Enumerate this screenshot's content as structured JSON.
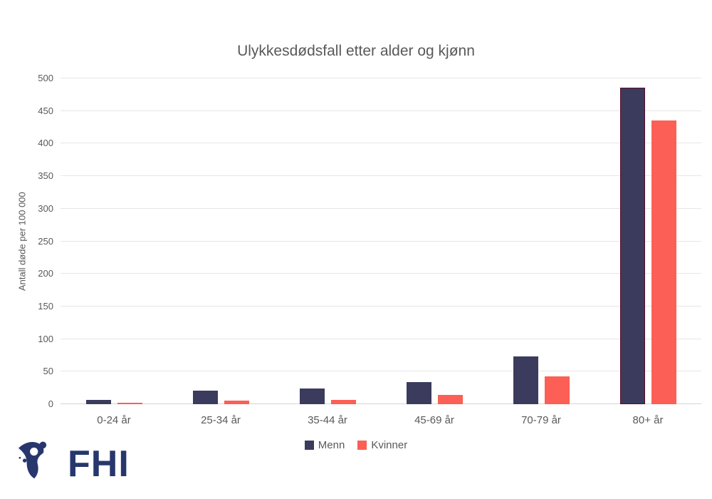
{
  "chart_data": {
    "type": "bar",
    "title": "Ulykkesdødsfall etter alder og kjønn",
    "ylabel": "Antall døde per 100 000",
    "xlabel": "",
    "ylim": [
      0,
      500
    ],
    "ytick_step": 50,
    "grid": true,
    "legend_position": "bottom",
    "categories": [
      "0-24 år",
      "25-34 år",
      "35-44 år",
      "45-69 år",
      "70-79 år",
      "80+ år"
    ],
    "series": [
      {
        "name": "Menn",
        "color": "#3B3B5E",
        "values": [
          7,
          21,
          24,
          34,
          73,
          486
        ]
      },
      {
        "name": "Kvinner",
        "color": "#FB5F55",
        "values": [
          2,
          5,
          7,
          14,
          43,
          435
        ]
      }
    ],
    "highlight": {
      "series": "Menn",
      "category": "80+ år",
      "border_color": "#5A0C26"
    }
  },
  "logo": {
    "text": "FHI",
    "color": "#27376D"
  },
  "colors": {
    "text": "#595959",
    "gridline": "#E6E6E6",
    "axis_line": "#D4D4D4"
  }
}
